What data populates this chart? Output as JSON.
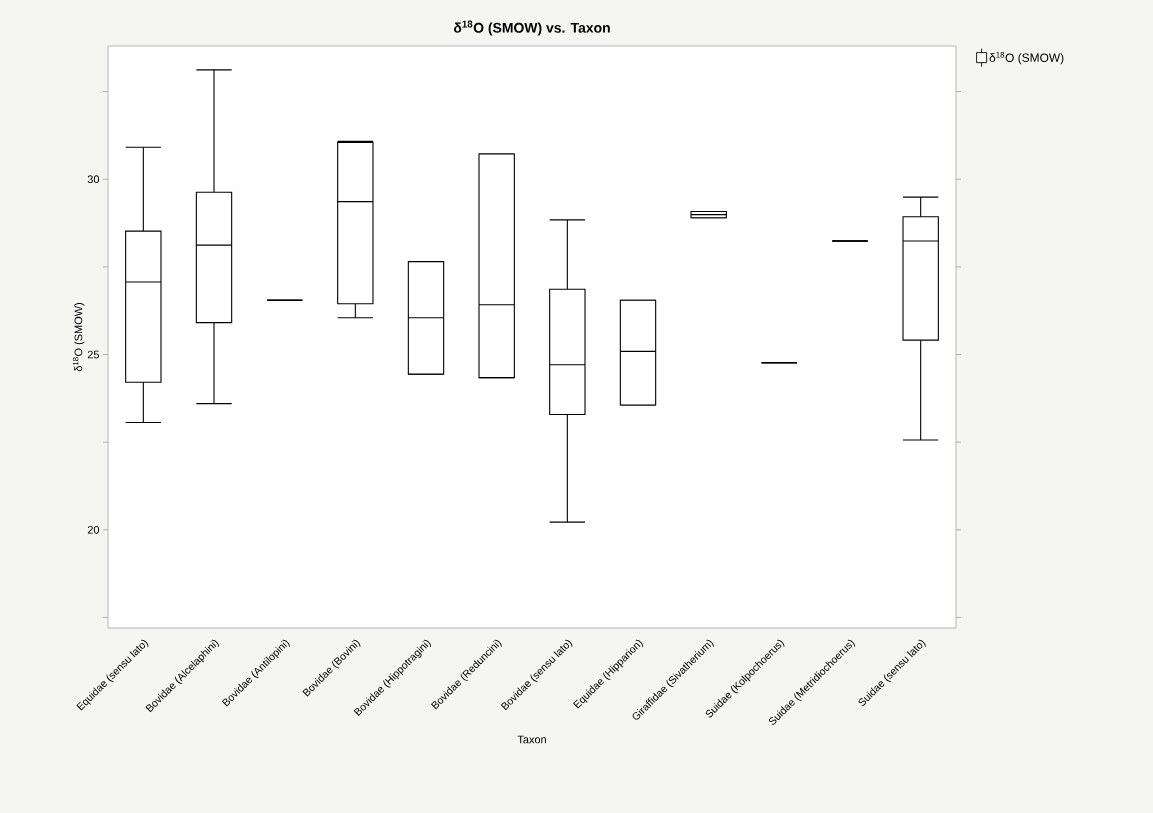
{
  "chart_data": {
    "type": "box",
    "title": "δ$^{18}$O (SMOW) vs. Taxon",
    "xlabel": "Taxon",
    "ylabel": "δ$^{18}$O (SMOW)",
    "categories": [
      "Equidae (sensu lato)",
      "Bovidae (Alcelaphini)",
      "Bovidae (Antilopini)",
      "Bovidae (Bovini)",
      "Bovidae (Hippotragini)",
      "Bovidae (Reduncini)",
      "Bovidae (sensu lato)",
      "Equidae (Hipparion)",
      "Giraffidae (Sivatherium)",
      "Suidae (Kolpochoerus)",
      "Suidae (Metridiochoerus)",
      "Suidae (sensu lato)"
    ],
    "series": [
      {
        "name": "δ$^{18}$O (SMOW)",
        "color": "#000000",
        "boxes": [
          {
            "low": 23.06,
            "q1": 24.21,
            "median": 27.07,
            "q3": 28.52,
            "high": 30.91
          },
          {
            "low": 23.6,
            "q1": 25.91,
            "median": 28.12,
            "q3": 29.63,
            "high": 33.12
          },
          {
            "low": 26.55,
            "q1": 26.55,
            "median": 26.55,
            "q3": 26.55,
            "high": 26.55
          },
          {
            "low": 26.05,
            "q1": 26.45,
            "median": 29.36,
            "q3": 31.05,
            "high": 31.08
          },
          {
            "low": 24.44,
            "q1": 24.44,
            "median": 26.05,
            "q3": 27.65,
            "high": 27.65
          },
          {
            "low": 24.34,
            "q1": 24.34,
            "median": 26.42,
            "q3": 30.72,
            "high": 30.72
          },
          {
            "low": 20.22,
            "q1": 23.29,
            "median": 24.71,
            "q3": 26.86,
            "high": 28.84
          },
          {
            "low": 23.56,
            "q1": 23.56,
            "median": 25.09,
            "q3": 26.55,
            "high": 26.55
          },
          {
            "low": 28.9,
            "q1": 28.9,
            "median": 28.99,
            "q3": 29.08,
            "high": 29.08
          },
          {
            "low": 24.77,
            "q1": 24.77,
            "median": 24.77,
            "q3": 24.77,
            "high": 24.77
          },
          {
            "low": 28.24,
            "q1": 28.24,
            "median": 28.24,
            "q3": 28.24,
            "high": 28.24
          },
          {
            "low": 22.56,
            "q1": 25.41,
            "median": 28.24,
            "q3": 28.93,
            "high": 29.49
          }
        ]
      }
    ],
    "ylim": [
      17.2,
      33.8
    ],
    "yticks": [
      {
        "value": 17.5,
        "label": null
      },
      20,
      {
        "value": 22.5,
        "label": null
      },
      25,
      {
        "value": 27.5,
        "label": null
      },
      30,
      {
        "value": 32.5,
        "label": null
      }
    ],
    "legend": "right",
    "grid": false
  }
}
